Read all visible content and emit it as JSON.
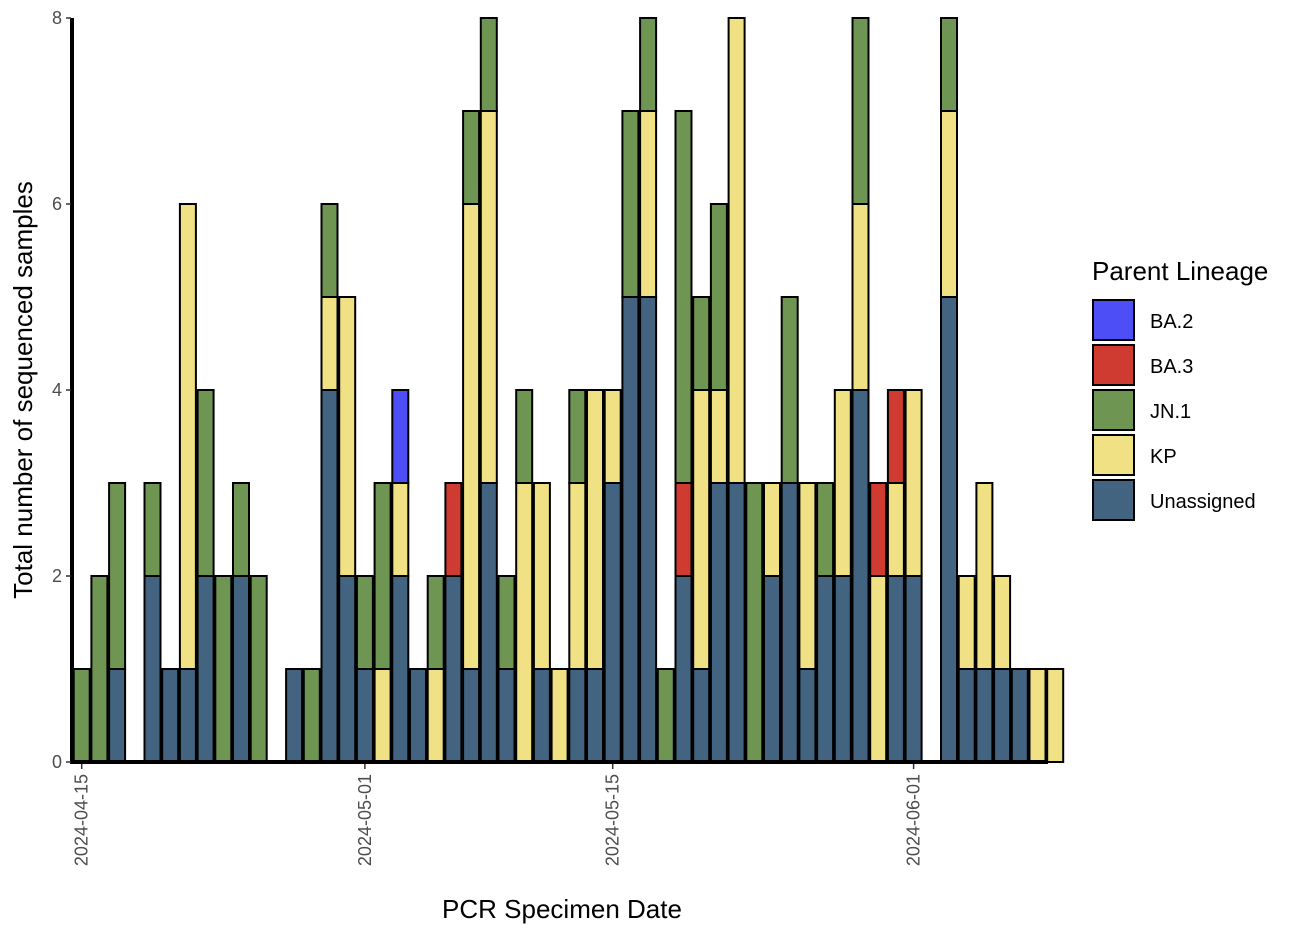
{
  "chart_data": {
    "type": "bar",
    "stacked": true,
    "title": "",
    "xlabel": "PCR Specimen Date",
    "ylabel": "Total number of sequenced samples",
    "ylim": [
      0,
      8
    ],
    "yticks": [
      0,
      2,
      4,
      6,
      8
    ],
    "xlim": [
      "2024-04-14",
      "2024-06-11"
    ],
    "xticks": [
      "2024-04-15",
      "2024-05-01",
      "2024-05-15",
      "2024-06-01"
    ],
    "grid": false,
    "legend": {
      "title": "Parent Lineage",
      "position": "right"
    },
    "stack_order_bottom_to_top": [
      "Unassigned",
      "KP",
      "BA.3",
      "JN.1",
      "BA.2"
    ],
    "series": [
      {
        "name": "BA.2",
        "color": "#4e4ef7"
      },
      {
        "name": "BA.3",
        "color": "#cf3b31"
      },
      {
        "name": "JN.1",
        "color": "#6f9553"
      },
      {
        "name": "KP",
        "color": "#efe184"
      },
      {
        "name": "Unassigned",
        "color": "#436480"
      }
    ],
    "bars": [
      {
        "date": "2024-04-15",
        "JN.1": 1
      },
      {
        "date": "2024-04-16",
        "JN.1": 2
      },
      {
        "date": "2024-04-17",
        "Unassigned": 1,
        "JN.1": 2
      },
      {
        "date": "2024-04-19",
        "Unassigned": 2,
        "JN.1": 1
      },
      {
        "date": "2024-04-20",
        "Unassigned": 1
      },
      {
        "date": "2024-04-21",
        "Unassigned": 1,
        "KP": 5
      },
      {
        "date": "2024-04-22",
        "Unassigned": 2,
        "JN.1": 2
      },
      {
        "date": "2024-04-23",
        "JN.1": 2
      },
      {
        "date": "2024-04-24",
        "Unassigned": 2,
        "JN.1": 1
      },
      {
        "date": "2024-04-25",
        "JN.1": 2
      },
      {
        "date": "2024-04-27",
        "Unassigned": 1
      },
      {
        "date": "2024-04-28",
        "JN.1": 1
      },
      {
        "date": "2024-04-29",
        "Unassigned": 4,
        "KP": 1,
        "JN.1": 1
      },
      {
        "date": "2024-04-30",
        "Unassigned": 2,
        "KP": 3
      },
      {
        "date": "2024-05-01",
        "Unassigned": 1,
        "JN.1": 1
      },
      {
        "date": "2024-05-02",
        "KP": 1,
        "JN.1": 2
      },
      {
        "date": "2024-05-03",
        "Unassigned": 2,
        "KP": 1,
        "BA.2": 1
      },
      {
        "date": "2024-05-04",
        "Unassigned": 1
      },
      {
        "date": "2024-05-05",
        "KP": 1,
        "JN.1": 1
      },
      {
        "date": "2024-05-06",
        "Unassigned": 2,
        "BA.3": 1
      },
      {
        "date": "2024-05-07",
        "Unassigned": 1,
        "KP": 5,
        "JN.1": 1
      },
      {
        "date": "2024-05-08",
        "Unassigned": 3,
        "KP": 4,
        "JN.1": 1
      },
      {
        "date": "2024-05-09",
        "Unassigned": 1,
        "JN.1": 1
      },
      {
        "date": "2024-05-10",
        "KP": 3,
        "JN.1": 1
      },
      {
        "date": "2024-05-11",
        "Unassigned": 1,
        "KP": 2
      },
      {
        "date": "2024-05-12",
        "KP": 1
      },
      {
        "date": "2024-05-13",
        "Unassigned": 1,
        "KP": 2,
        "JN.1": 1
      },
      {
        "date": "2024-05-14",
        "Unassigned": 1,
        "KP": 3
      },
      {
        "date": "2024-05-15",
        "Unassigned": 3,
        "KP": 1
      },
      {
        "date": "2024-05-16",
        "Unassigned": 5,
        "JN.1": 2
      },
      {
        "date": "2024-05-17",
        "Unassigned": 5,
        "KP": 2,
        "JN.1": 1
      },
      {
        "date": "2024-05-18",
        "JN.1": 1
      },
      {
        "date": "2024-05-19",
        "Unassigned": 2,
        "JN.1": 4,
        "BA.3": 1
      },
      {
        "date": "2024-05-20",
        "Unassigned": 1,
        "KP": 3,
        "JN.1": 1
      },
      {
        "date": "2024-05-21",
        "Unassigned": 3,
        "KP": 1,
        "JN.1": 2
      },
      {
        "date": "2024-05-22",
        "Unassigned": 3,
        "KP": 5
      },
      {
        "date": "2024-05-23",
        "JN.1": 3
      },
      {
        "date": "2024-05-24",
        "Unassigned": 2,
        "KP": 1
      },
      {
        "date": "2024-05-25",
        "Unassigned": 3,
        "JN.1": 2
      },
      {
        "date": "2024-05-26",
        "Unassigned": 1,
        "KP": 2
      },
      {
        "date": "2024-05-27",
        "Unassigned": 2,
        "JN.1": 1
      },
      {
        "date": "2024-05-28",
        "Unassigned": 2,
        "KP": 2
      },
      {
        "date": "2024-05-29",
        "Unassigned": 4,
        "KP": 2,
        "JN.1": 2
      },
      {
        "date": "2024-05-30",
        "KP": 2,
        "BA.3": 1
      },
      {
        "date": "2024-05-31",
        "Unassigned": 2,
        "KP": 1,
        "BA.3": 1
      },
      {
        "date": "2024-06-01",
        "Unassigned": 2,
        "KP": 2
      },
      {
        "date": "2024-06-03",
        "Unassigned": 5,
        "KP": 2,
        "JN.1": 1
      },
      {
        "date": "2024-06-04",
        "Unassigned": 1,
        "KP": 1
      },
      {
        "date": "2024-06-05",
        "Unassigned": 1,
        "KP": 2
      },
      {
        "date": "2024-06-06",
        "Unassigned": 1,
        "KP": 1
      },
      {
        "date": "2024-06-07",
        "Unassigned": 1
      },
      {
        "date": "2024-06-08",
        "KP": 1
      },
      {
        "date": "2024-06-09",
        "KP": 1
      }
    ]
  }
}
